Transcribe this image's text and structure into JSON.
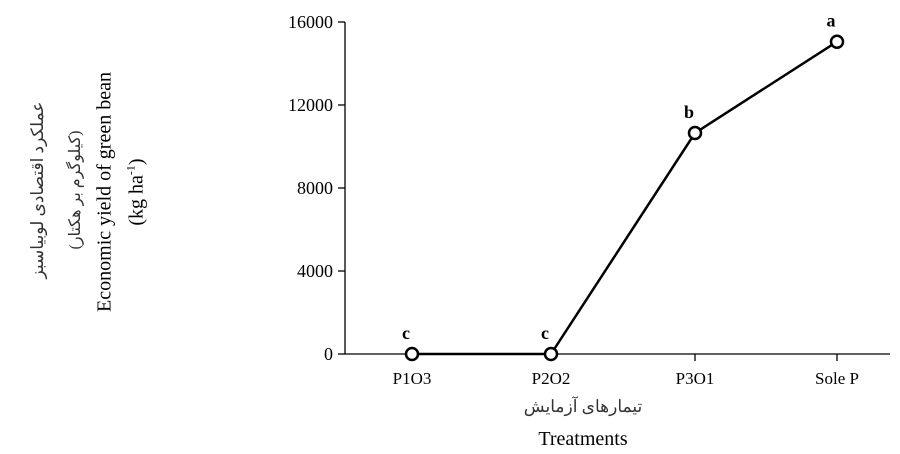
{
  "chart_data": {
    "type": "line",
    "categories": [
      "P1O3",
      "P2O2",
      "P3O1",
      "Sole P"
    ],
    "values": [
      0,
      0,
      10650,
      15050
    ],
    "significance_letters": [
      "c",
      "c",
      "b",
      "a"
    ],
    "ylim": [
      0,
      16000
    ],
    "yticks": [
      0,
      4000,
      8000,
      12000,
      16000
    ],
    "ylabel_en": "Economic yield of green bean",
    "yunit_en_base": "(kg ha",
    "yunit_en_exp": "-1",
    "yunit_en_close": ")",
    "ylabel_fa": "عملکرد اقتصادی لوبیاسبز",
    "yunit_fa": "(کیلوگرم بر هکتار)",
    "xlabel_fa": "تیمارهای آزمایش",
    "xlabel_en": "Treatments",
    "grid": false,
    "line_color": "#000000",
    "marker_fill": "#ffffff"
  }
}
